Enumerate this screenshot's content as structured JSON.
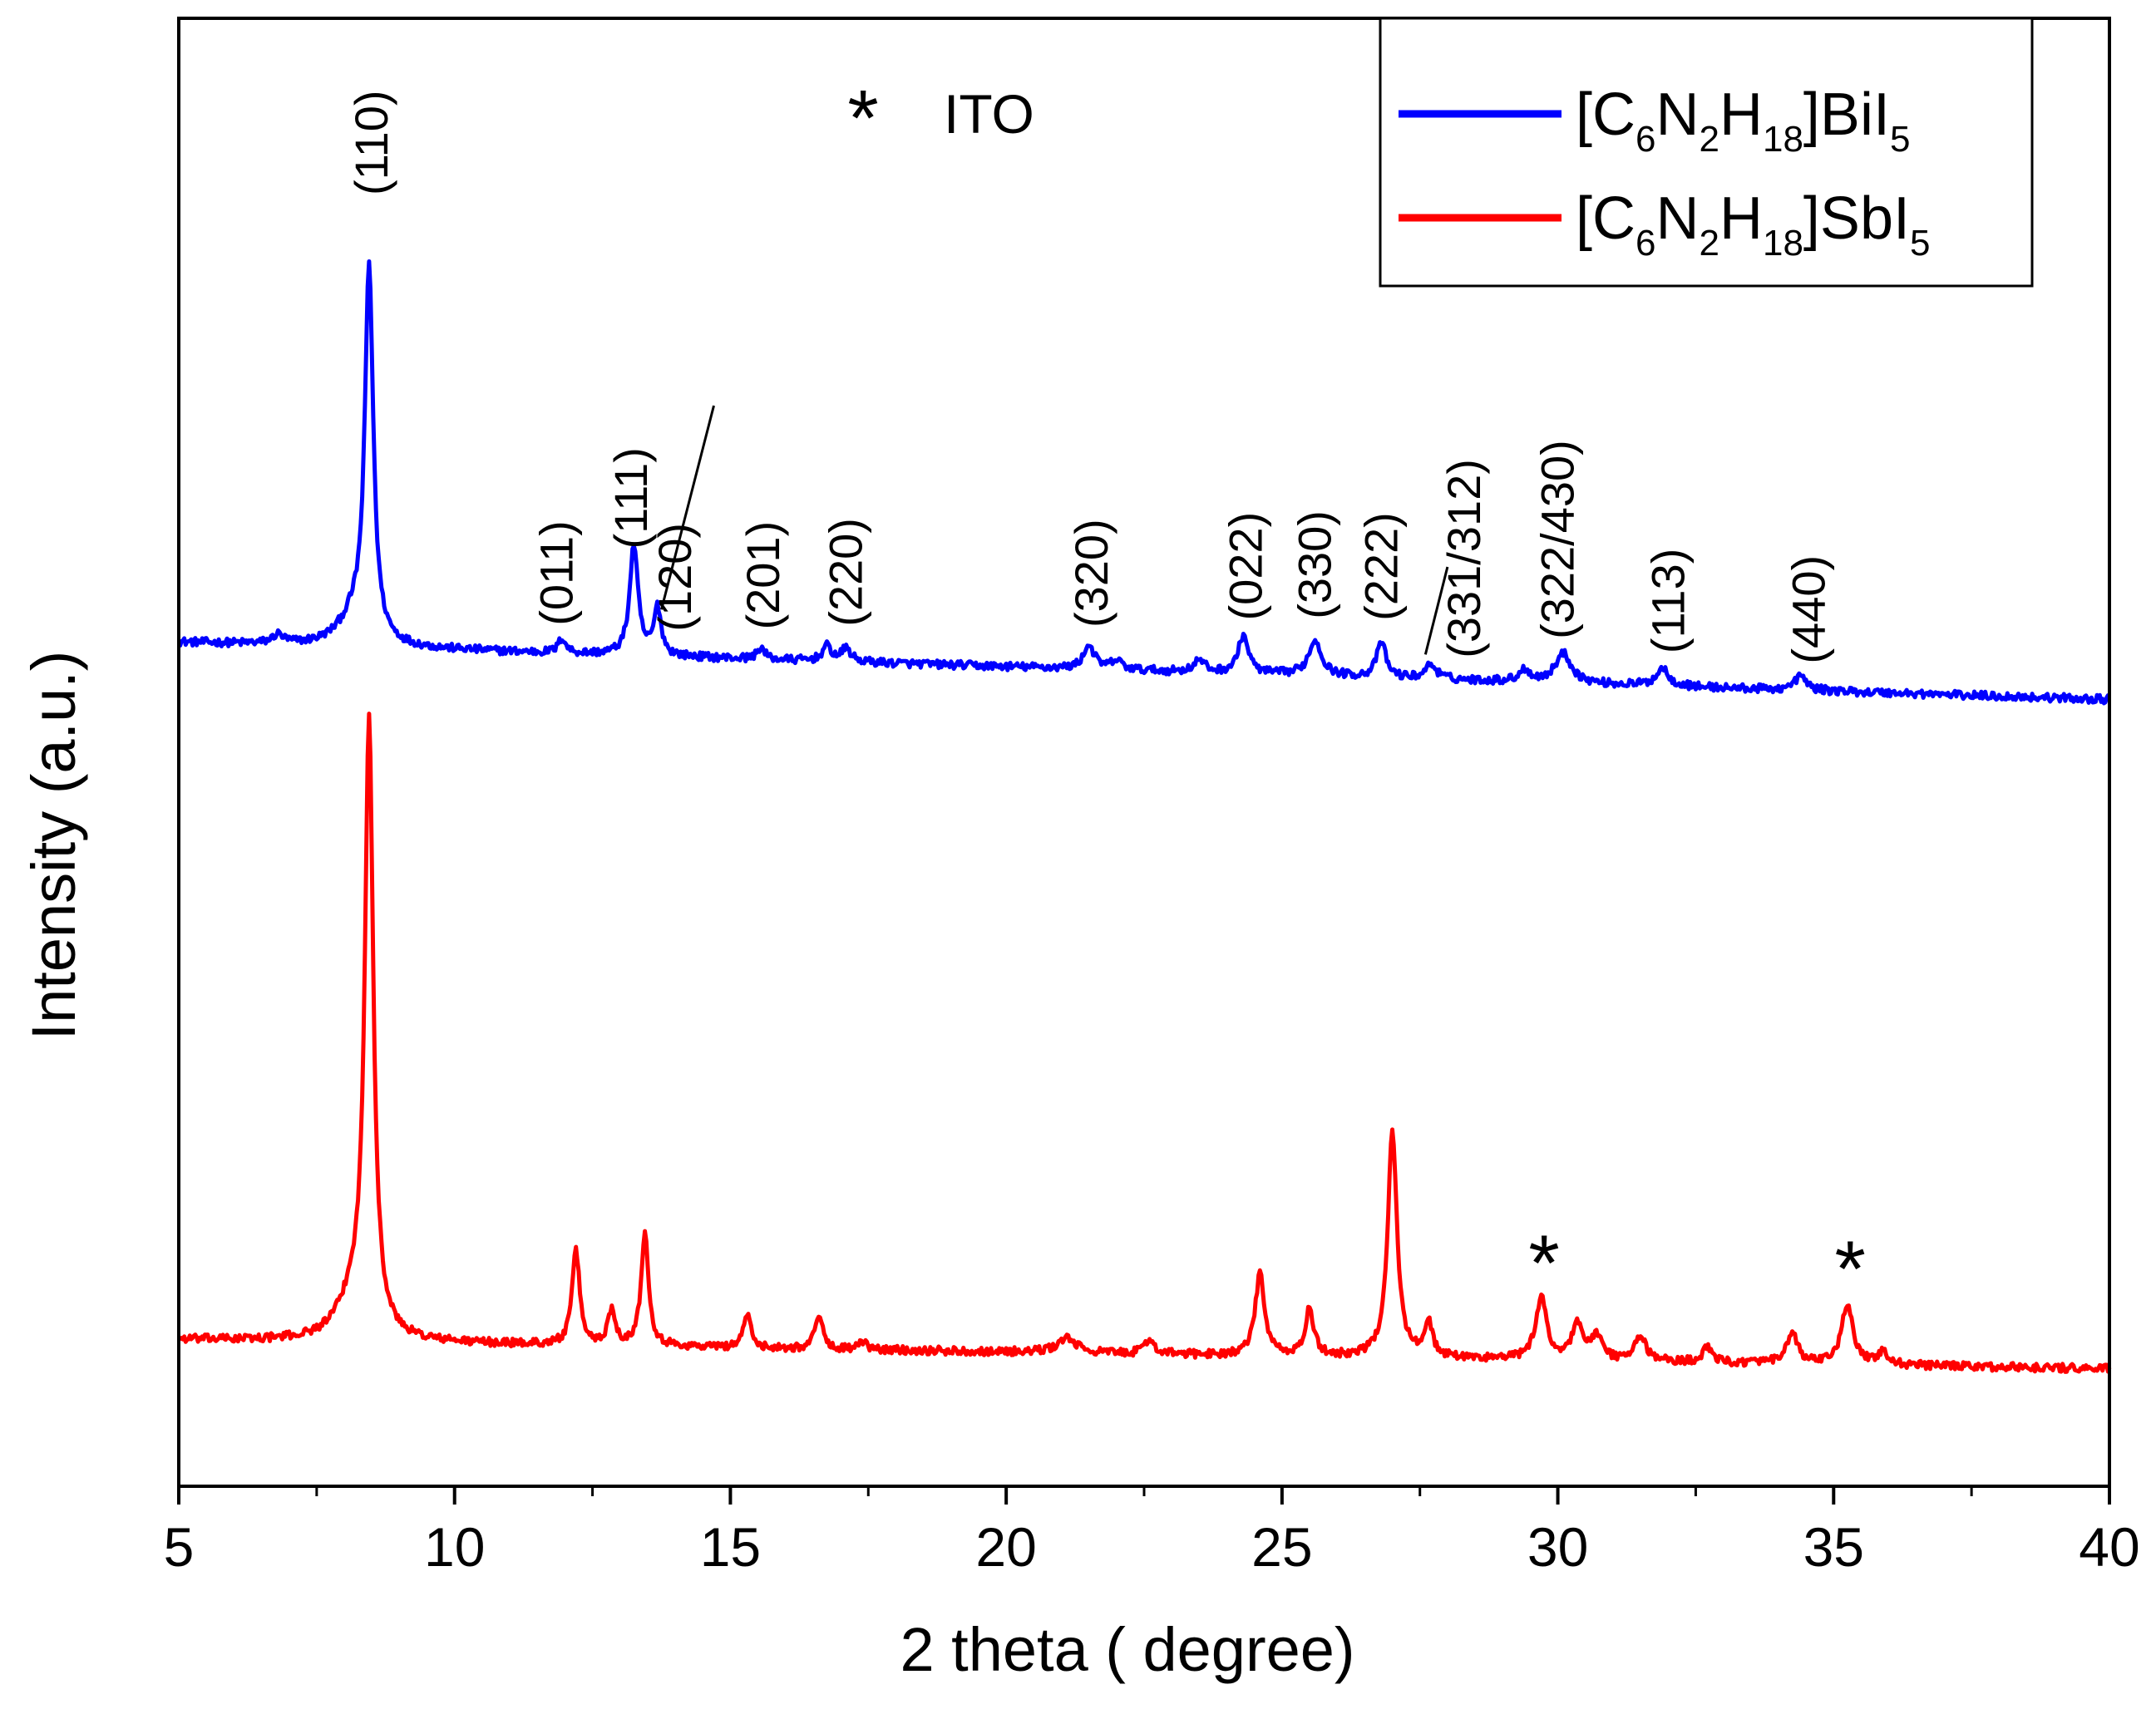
{
  "chart_data": {
    "type": "line",
    "title": "",
    "xlabel": "2 theta ( degree)",
    "ylabel": "Intensity (a.u.)",
    "xlim": [
      5,
      40
    ],
    "xticks": [
      5,
      10,
      15,
      20,
      25,
      30,
      35,
      40
    ],
    "xtick_labels": [
      "5",
      "10",
      "15",
      "20",
      "25",
      "30",
      "35",
      "40"
    ],
    "ylim": [
      0,
      100
    ],
    "yticks_shown": false,
    "legend": {
      "location": "top-right",
      "entries": [
        {
          "series": "BiI5",
          "prefix": "[C",
          "s1": "6",
          "m1": "N",
          "s2": "2",
          "m2": "H",
          "s3": "18",
          "m3": "]BiI",
          "s4": "5",
          "color": "#0000ff"
        },
        {
          "series": "SbI5",
          "prefix": "[C",
          "s1": "6",
          "m1": "N",
          "s2": "2",
          "m2": "H",
          "s3": "18",
          "m3": "]SbI",
          "s4": "5",
          "color": "#ff0000"
        }
      ]
    },
    "series": [
      {
        "name": "[C6N2H18]BiI5",
        "color": "#0000ff",
        "baseline_start": 57.5,
        "baseline_end": 53.6,
        "peaks": [
          {
            "x": 6.8,
            "h": 0.6,
            "w": 0.12
          },
          {
            "x": 8.45,
            "h": 25.0,
            "w": 0.09
          },
          {
            "x": 8.2,
            "h": 2.0,
            "w": 0.35
          },
          {
            "x": 11.95,
            "h": 1.0,
            "w": 0.08
          },
          {
            "x": 13.25,
            "h": 7.5,
            "w": 0.09
          },
          {
            "x": 13.68,
            "h": 3.2,
            "w": 0.08
          },
          {
            "x": 15.55,
            "h": 0.8,
            "w": 0.08
          },
          {
            "x": 16.75,
            "h": 1.0,
            "w": 0.1
          },
          {
            "x": 17.1,
            "h": 0.9,
            "w": 0.1
          },
          {
            "x": 21.5,
            "h": 1.6,
            "w": 0.12
          },
          {
            "x": 22.0,
            "h": 0.6,
            "w": 0.12
          },
          {
            "x": 23.5,
            "h": 0.8,
            "w": 0.12
          },
          {
            "x": 24.3,
            "h": 2.6,
            "w": 0.11
          },
          {
            "x": 25.6,
            "h": 2.4,
            "w": 0.14
          },
          {
            "x": 26.8,
            "h": 2.4,
            "w": 0.1
          },
          {
            "x": 27.7,
            "h": 1.0,
            "w": 0.12
          },
          {
            "x": 29.4,
            "h": 0.8,
            "w": 0.12
          },
          {
            "x": 30.1,
            "h": 2.0,
            "w": 0.18
          },
          {
            "x": 31.9,
            "h": 1.2,
            "w": 0.14
          },
          {
            "x": 34.4,
            "h": 1.0,
            "w": 0.12
          }
        ],
        "annotations": [
          {
            "label": "(110)",
            "x": 8.5
          },
          {
            "label": "(011)",
            "x": 11.85
          },
          {
            "label": "(111)",
            "x": 13.2
          },
          {
            "label": "(120)",
            "x": 14.0
          },
          {
            "label": "(201)",
            "x": 15.6
          },
          {
            "label": "(220)",
            "x": 17.1
          },
          {
            "label": "(320)",
            "x": 21.55
          },
          {
            "label": "(022)",
            "x": 24.35
          },
          {
            "label": "(330)",
            "x": 25.6
          },
          {
            "label": "(222)",
            "x": 26.8
          },
          {
            "label": "(331/312)",
            "x": 28.3
          },
          {
            "label": "(322/430)",
            "x": 30.0
          },
          {
            "label": "(113)",
            "x": 32.0
          },
          {
            "label": "(440)",
            "x": 34.55
          }
        ]
      },
      {
        "name": "[C6N2H18]SbI5",
        "color": "#ff0000",
        "baseline_start": 10.0,
        "baseline_end": 8.0,
        "peaks": [
          {
            "x": 8.45,
            "h": 41.0,
            "w": 0.09
          },
          {
            "x": 8.2,
            "h": 3.0,
            "w": 0.35
          },
          {
            "x": 12.2,
            "h": 6.5,
            "w": 0.08
          },
          {
            "x": 12.85,
            "h": 2.4,
            "w": 0.08
          },
          {
            "x": 13.45,
            "h": 7.8,
            "w": 0.08
          },
          {
            "x": 15.3,
            "h": 2.3,
            "w": 0.08
          },
          {
            "x": 16.6,
            "h": 2.4,
            "w": 0.08
          },
          {
            "x": 17.4,
            "h": 0.5,
            "w": 0.08
          },
          {
            "x": 21.1,
            "h": 1.0,
            "w": 0.2
          },
          {
            "x": 22.6,
            "h": 1.0,
            "w": 0.1
          },
          {
            "x": 24.6,
            "h": 5.6,
            "w": 0.1
          },
          {
            "x": 25.5,
            "h": 3.2,
            "w": 0.09
          },
          {
            "x": 27.0,
            "h": 15.5,
            "w": 0.1
          },
          {
            "x": 27.65,
            "h": 2.4,
            "w": 0.09
          },
          {
            "x": 29.7,
            "h": 4.2,
            "w": 0.12
          },
          {
            "x": 30.35,
            "h": 2.5,
            "w": 0.11
          },
          {
            "x": 30.7,
            "h": 1.6,
            "w": 0.12
          },
          {
            "x": 31.5,
            "h": 1.7,
            "w": 0.12
          },
          {
            "x": 32.7,
            "h": 1.0,
            "w": 0.1
          },
          {
            "x": 34.25,
            "h": 2.0,
            "w": 0.12
          },
          {
            "x": 35.25,
            "h": 4.2,
            "w": 0.12
          },
          {
            "x": 35.9,
            "h": 0.8,
            "w": 0.12
          }
        ],
        "markers": [
          {
            "symbol": "*",
            "x": 29.75
          },
          {
            "symbol": "*",
            "x": 35.3
          }
        ]
      }
    ],
    "ito_note": {
      "symbol": "*",
      "text": "ITO"
    }
  }
}
